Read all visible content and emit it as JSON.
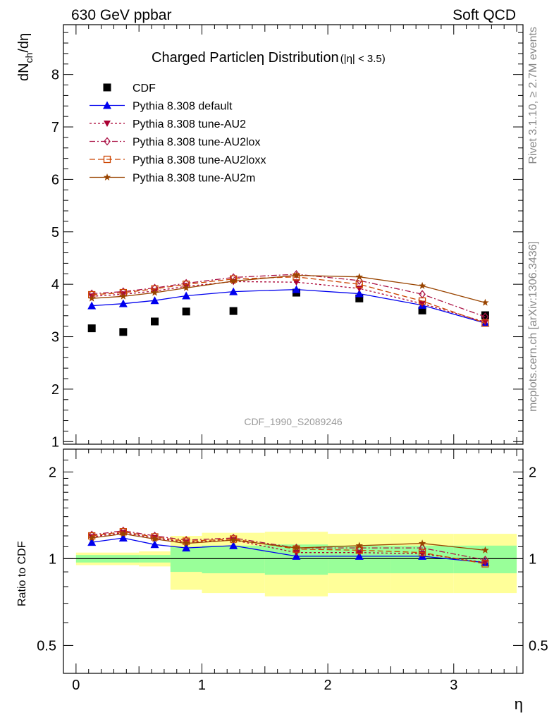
{
  "header": {
    "left_label": "630 GeV ppbar",
    "right_label": "Soft QCD",
    "side_top": "Rivet 3.1.10, ≥ 2.7M events",
    "side_bottom": "mcplots.cern.ch [arXiv:1306.3436]",
    "analysis_ref": "CDF_1990_S2089246"
  },
  "chart_data": [
    {
      "type": "line",
      "title": "Charged Particleη Distribution",
      "subtitle": "(|η| < 3.5)",
      "ylabel": "dN_ch/dη",
      "xlim": [
        -0.1,
        3.55
      ],
      "ylim": [
        0.95,
        8.95
      ],
      "yticks": [
        1,
        2,
        3,
        4,
        5,
        6,
        7,
        8
      ],
      "x": [
        0.125,
        0.375,
        0.625,
        0.875,
        1.25,
        1.75,
        2.25,
        2.75,
        3.25
      ],
      "series": [
        {
          "name": "CDF",
          "color": "#000000",
          "marker": "square",
          "line": "none",
          "values": [
            3.16,
            3.09,
            3.29,
            3.48,
            3.49,
            3.84,
            3.73,
            3.5,
            3.41
          ]
        },
        {
          "name": "Pythia 8.308 default",
          "color": "#0000ee",
          "marker": "triangle-up",
          "line": "solid",
          "values": [
            3.59,
            3.63,
            3.69,
            3.78,
            3.86,
            3.9,
            3.82,
            3.6,
            3.26
          ]
        },
        {
          "name": "Pythia 8.308 tune-AU2",
          "color": "#aa0033",
          "marker": "triangle-down",
          "line": "dotted",
          "values": [
            3.77,
            3.81,
            3.87,
            3.96,
            4.05,
            4.04,
            3.92,
            3.63,
            3.28
          ]
        },
        {
          "name": "Pythia 8.308 tune-AU2lox",
          "color": "#aa1144",
          "marker": "diamond-open",
          "line": "dashdot",
          "values": [
            3.82,
            3.86,
            3.93,
            4.02,
            4.13,
            4.19,
            4.07,
            3.81,
            3.38
          ]
        },
        {
          "name": "Pythia 8.308 tune-AU2loxx",
          "color": "#cc4400",
          "marker": "square-open",
          "line": "dashed",
          "values": [
            3.8,
            3.84,
            3.91,
            4.0,
            4.1,
            4.14,
            4.0,
            3.68,
            3.26
          ]
        },
        {
          "name": "Pythia 8.308 tune-AU2m",
          "color": "#994400",
          "marker": "star",
          "line": "solid",
          "values": [
            3.73,
            3.77,
            3.84,
            3.93,
            4.06,
            4.17,
            4.14,
            3.97,
            3.65
          ]
        }
      ]
    },
    {
      "type": "line",
      "xlabel": "η",
      "ylabel": "Ratio to CDF",
      "xlim": [
        -0.1,
        3.55
      ],
      "ylim": [
        0.4,
        2.4
      ],
      "xticks": [
        0,
        1,
        2,
        3
      ],
      "yticks": [
        0.5,
        1,
        2
      ],
      "reference_line": 1,
      "bands": {
        "edges": [
          0,
          0.5,
          0.75,
          1.0,
          1.5,
          2.0,
          2.5,
          3.0,
          3.5
        ],
        "stat_color": "#99ff99",
        "syst_color": "#ffff99",
        "stat_lo": [
          0.97,
          0.97,
          0.9,
          0.89,
          0.88,
          0.89,
          0.89,
          0.89,
          0.85
        ],
        "stat_hi": [
          1.03,
          1.03,
          1.1,
          1.11,
          1.12,
          1.11,
          1.11,
          1.11,
          1.15
        ],
        "syst_lo": [
          0.95,
          0.94,
          0.78,
          0.76,
          0.74,
          0.76,
          0.76,
          0.76,
          0.66
        ],
        "syst_hi": [
          1.05,
          1.06,
          1.2,
          1.23,
          1.24,
          1.22,
          1.22,
          1.22,
          1.34
        ]
      },
      "series": [
        {
          "name": "Pythia 8.308 default",
          "values": [
            1.14,
            1.18,
            1.12,
            1.09,
            1.11,
            1.02,
            1.02,
            1.02,
            0.97
          ]
        },
        {
          "name": "Pythia 8.308 tune-AU2",
          "values": [
            1.19,
            1.23,
            1.18,
            1.14,
            1.16,
            1.05,
            1.05,
            1.04,
            0.97
          ]
        },
        {
          "name": "Pythia 8.308 tune-AU2lox",
          "values": [
            1.21,
            1.25,
            1.2,
            1.16,
            1.18,
            1.09,
            1.09,
            1.09,
            0.99
          ]
        },
        {
          "name": "Pythia 8.308 tune-AU2loxx",
          "values": [
            1.2,
            1.24,
            1.19,
            1.15,
            1.17,
            1.08,
            1.07,
            1.05,
            0.96
          ]
        },
        {
          "name": "Pythia 8.308 tune-AU2m",
          "values": [
            1.18,
            1.22,
            1.17,
            1.13,
            1.16,
            1.09,
            1.11,
            1.13,
            1.07
          ]
        }
      ]
    }
  ]
}
